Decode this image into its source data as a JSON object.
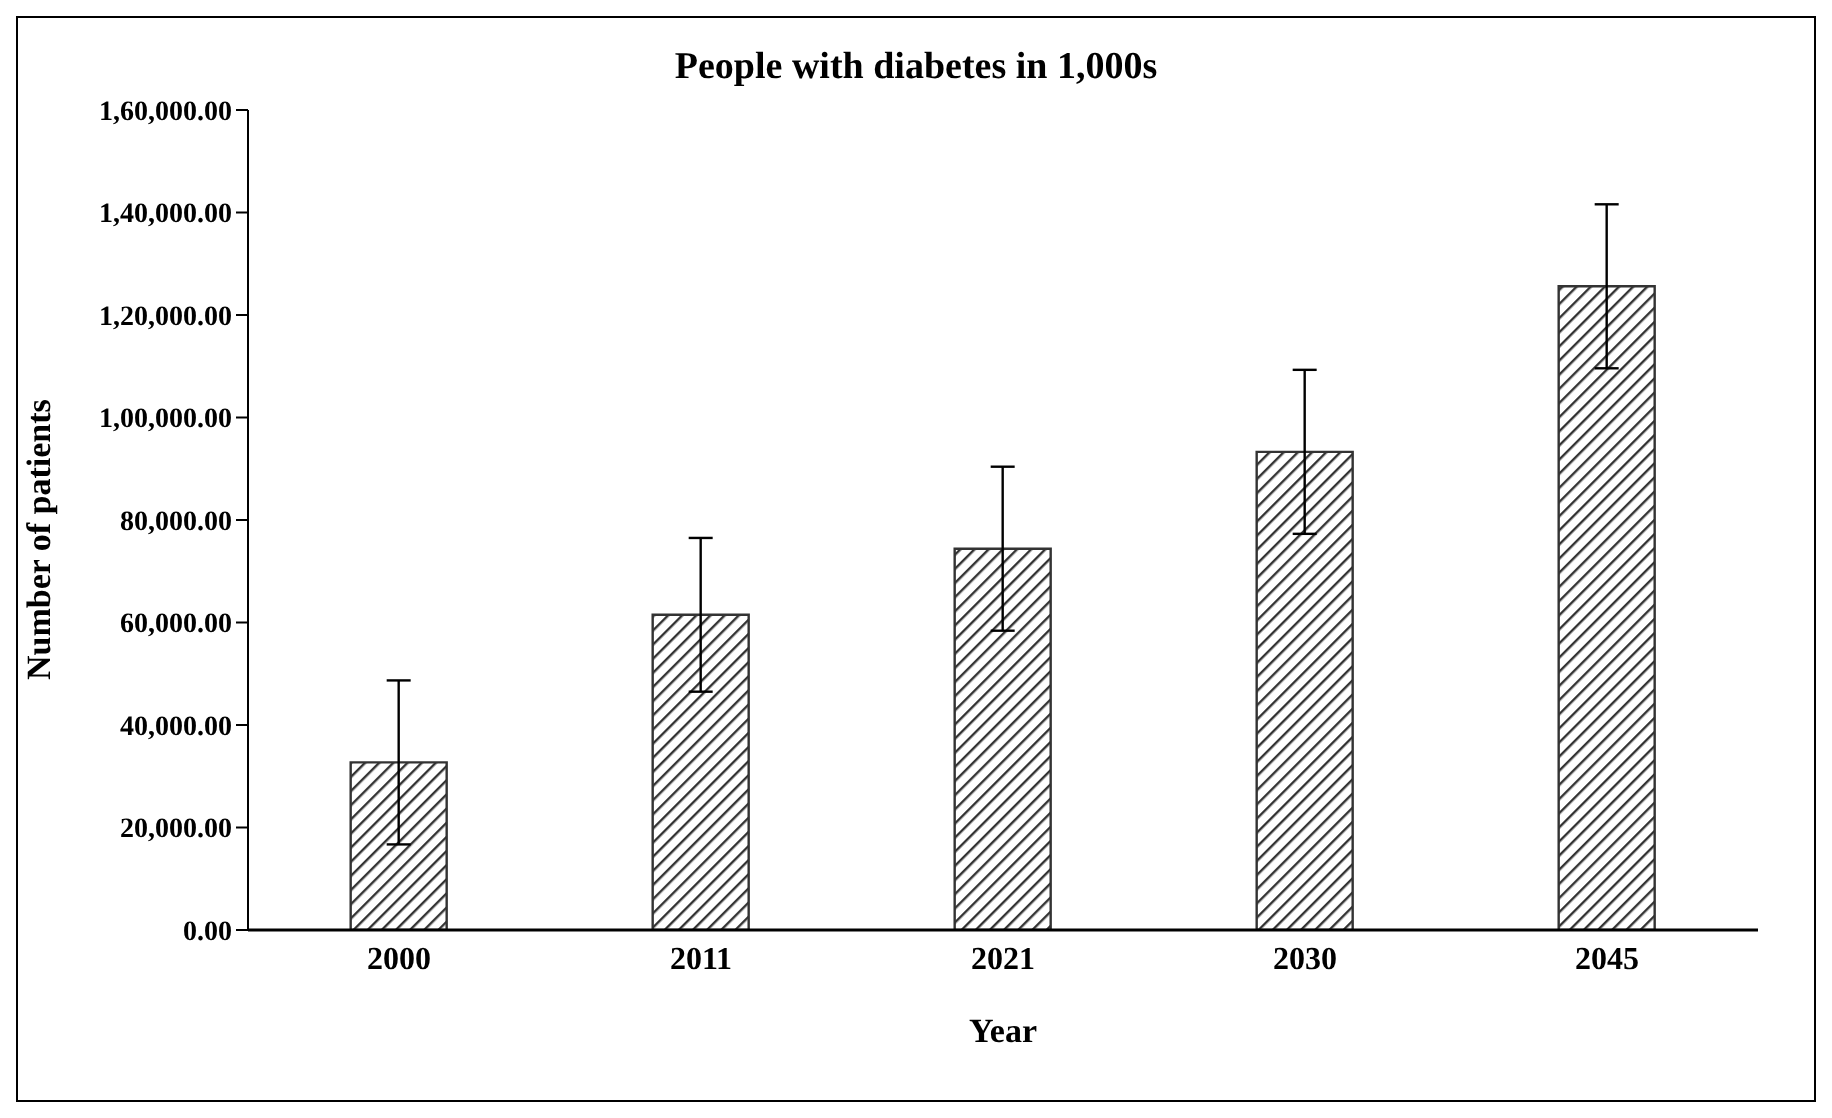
{
  "chart_data": {
    "type": "bar",
    "title": "People with diabetes in 1,000s",
    "xlabel": "Year",
    "ylabel": "Number of patients",
    "categories": [
      "2000",
      "2011",
      "2021",
      "2030",
      "2045"
    ],
    "values": [
      32700,
      61500,
      74400,
      93300,
      125600
    ],
    "errors": [
      16000,
      15000,
      16000,
      16000,
      16000
    ],
    "color": "#333333",
    "ylim": [
      0,
      160000
    ],
    "yticks": [
      {
        "value": 0,
        "label": "0.00"
      },
      {
        "value": 20000,
        "label": "20,000.00"
      },
      {
        "value": 40000,
        "label": "40,000.00"
      },
      {
        "value": 60000,
        "label": "60,000.00"
      },
      {
        "value": 80000,
        "label": "80,000.00"
      },
      {
        "value": 100000,
        "label": "1,00,000.00"
      },
      {
        "value": 120000,
        "label": "1,20,000.00"
      },
      {
        "value": 140000,
        "label": "1,40,000.00"
      },
      {
        "value": 160000,
        "label": "1,60,000.00"
      }
    ],
    "grid": false,
    "legend": false
  }
}
